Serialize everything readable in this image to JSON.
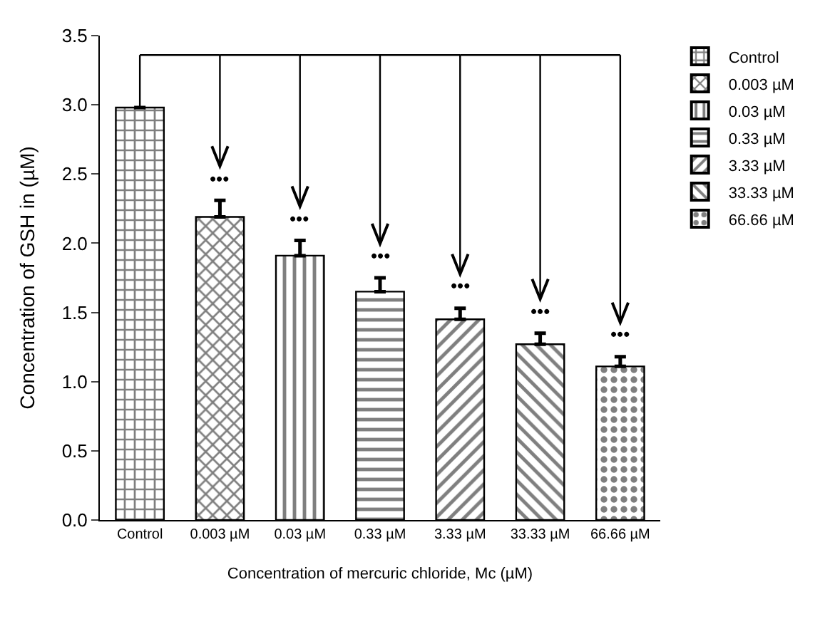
{
  "chart_data": {
    "type": "bar",
    "xlabel": "Concentration of mercuric chloride, Mc (µM)",
    "ylabel": "Concentration of GSH in (µM)",
    "categories": [
      "Control",
      "0.003 µM",
      "0.03 µM",
      "0.33 µM",
      "3.33 µM",
      "33.33 µM",
      "66.66 µM"
    ],
    "series": [
      {
        "name": "Control",
        "color": "#000000",
        "values": [
          2.98,
          null,
          null,
          null,
          null,
          null,
          null
        ],
        "errors": [
          null,
          null,
          null,
          null,
          null,
          null,
          null
        ]
      },
      {
        "name": "0.003 µM",
        "color": "#000000",
        "values": [
          null,
          2.19,
          null,
          null,
          null,
          null,
          null
        ],
        "errors": [
          null,
          0.12,
          null,
          null,
          null,
          null,
          null
        ]
      },
      {
        "name": "0.03 µM",
        "color": "#000000",
        "values": [
          null,
          null,
          1.91,
          null,
          null,
          null,
          null
        ],
        "errors": [
          null,
          null,
          0.11,
          null,
          null,
          null,
          null
        ]
      },
      {
        "name": "0.33 µM",
        "color": "#000000",
        "values": [
          null,
          null,
          null,
          1.65,
          null,
          null,
          null
        ],
        "errors": [
          null,
          null,
          null,
          0.1,
          null,
          null,
          null
        ]
      },
      {
        "name": "3.33 µM",
        "color": "#000000",
        "values": [
          null,
          null,
          null,
          null,
          1.45,
          null,
          null
        ],
        "errors": [
          null,
          null,
          null,
          null,
          0.08,
          null,
          null
        ]
      },
      {
        "name": "33.33 µM",
        "color": "#000000",
        "values": [
          null,
          null,
          null,
          null,
          null,
          1.27,
          null
        ],
        "errors": [
          null,
          null,
          null,
          null,
          null,
          0.08,
          null
        ]
      },
      {
        "name": "66.66 µM",
        "color": "#000000",
        "values": [
          null,
          null,
          null,
          null,
          null,
          null,
          1.11
        ],
        "errors": [
          null,
          null,
          null,
          null,
          null,
          null,
          0.07
        ]
      }
    ],
    "annotations": [
      "•••",
      "•••",
      "•••",
      "•••",
      "•••",
      "•••"
    ],
    "ylim": [
      0,
      3.5
    ],
    "yticks": [
      {
        "value": 0,
        "label": "0.0"
      },
      0.5,
      {
        "value": 1,
        "label": "1.0"
      },
      1.5,
      {
        "value": 2,
        "label": "2.0"
      },
      2.5,
      {
        "value": 3,
        "label": "3.0"
      },
      3.5
    ],
    "legend": "right"
  }
}
